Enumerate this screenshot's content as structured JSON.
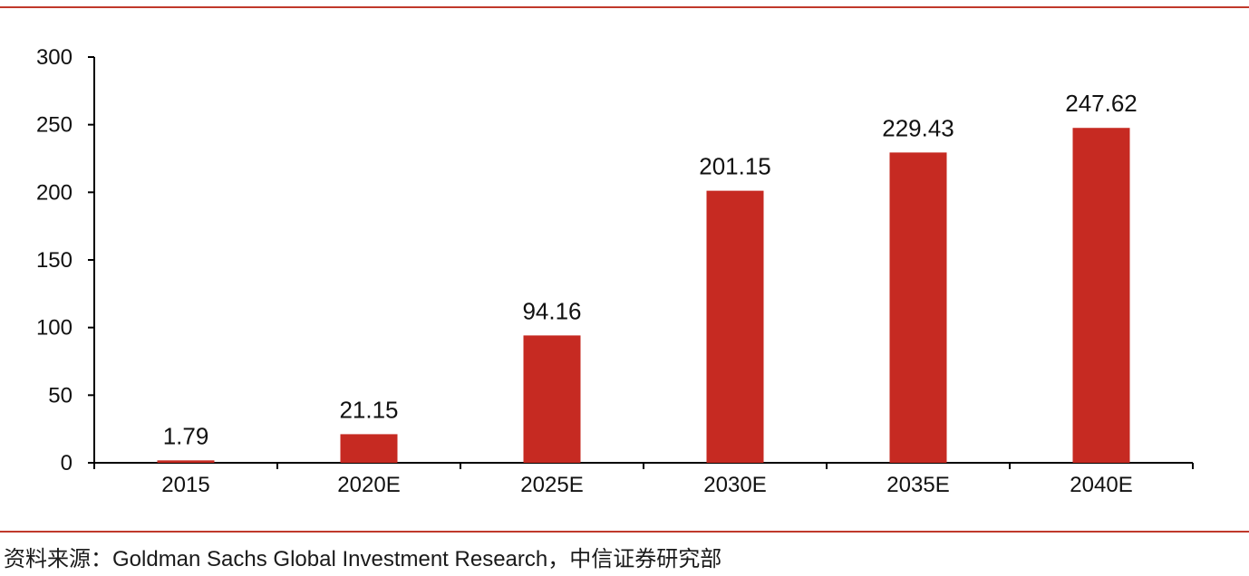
{
  "chart_data": {
    "type": "bar",
    "categories": [
      "2015",
      "2020E",
      "2025E",
      "2030E",
      "2035E",
      "2040E"
    ],
    "values": [
      1.79,
      21.15,
      94.16,
      201.15,
      229.43,
      247.62
    ],
    "value_labels": [
      "1.79",
      "21.15",
      "94.16",
      "201.15",
      "229.43",
      "247.62"
    ],
    "ylim": [
      0,
      300
    ],
    "yticks": [
      0,
      50,
      100,
      150,
      200,
      250,
      300
    ],
    "title": "",
    "xlabel": "",
    "ylabel": "",
    "grid": false,
    "bar_color": "#c62a22"
  },
  "footer": {
    "source": "资料来源：Goldman Sachs Global Investment Research，中信证券研究部"
  },
  "colors": {
    "rule": "#c0392b"
  }
}
